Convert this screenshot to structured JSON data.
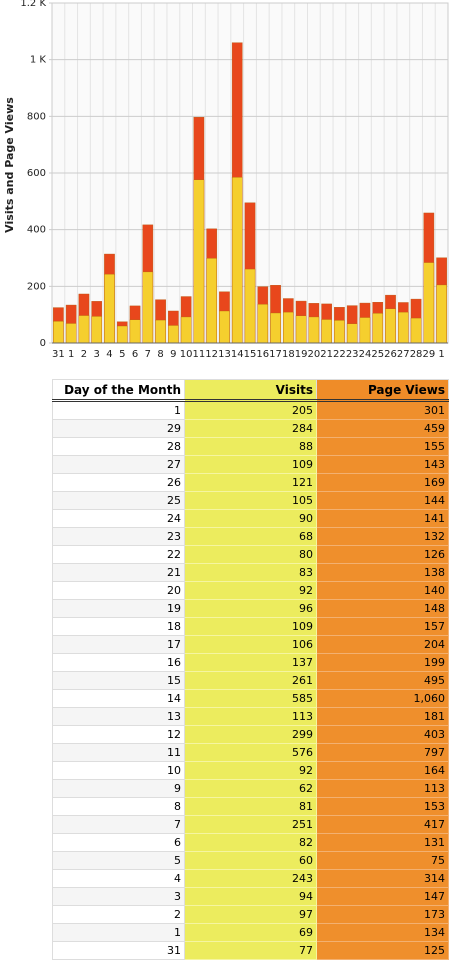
{
  "chart_data": {
    "type": "bar",
    "ylabel": "Visits and Page Views",
    "categories": [
      "31",
      "1",
      "2",
      "3",
      "4",
      "5",
      "6",
      "7",
      "8",
      "9",
      "10",
      "11",
      "12",
      "13",
      "14",
      "15",
      "16",
      "17",
      "18",
      "19",
      "20",
      "21",
      "22",
      "23",
      "24",
      "25",
      "26",
      "27",
      "28",
      "29",
      "1"
    ],
    "series": [
      {
        "name": "Page Views",
        "color": "#e8471c",
        "values": [
          125,
          134,
          173,
          147,
          314,
          75,
          131,
          417,
          153,
          113,
          164,
          797,
          403,
          181,
          1060,
          495,
          199,
          204,
          157,
          148,
          140,
          138,
          126,
          132,
          141,
          144,
          169,
          143,
          155,
          459,
          301
        ]
      },
      {
        "name": "Visits",
        "color": "#f5cf2e",
        "values": [
          77,
          69,
          97,
          94,
          243,
          60,
          82,
          251,
          81,
          62,
          92,
          576,
          299,
          113,
          585,
          261,
          137,
          106,
          109,
          96,
          92,
          83,
          80,
          68,
          90,
          105,
          121,
          109,
          88,
          284,
          205
        ]
      }
    ],
    "ylim": [
      0,
      1200
    ],
    "yticks": [
      0,
      200,
      400,
      600,
      800,
      {
        "value": 1000,
        "label": "1 K"
      },
      {
        "value": 1200,
        "label": "1.2 K"
      }
    ],
    "grid": true
  },
  "table": {
    "header": [
      "Day of the Month",
      "Visits",
      "Page Views"
    ],
    "rows": [
      [
        "1",
        "205",
        "301"
      ],
      [
        "29",
        "284",
        "459"
      ],
      [
        "28",
        "88",
        "155"
      ],
      [
        "27",
        "109",
        "143"
      ],
      [
        "26",
        "121",
        "169"
      ],
      [
        "25",
        "105",
        "144"
      ],
      [
        "24",
        "90",
        "141"
      ],
      [
        "23",
        "68",
        "132"
      ],
      [
        "22",
        "80",
        "126"
      ],
      [
        "21",
        "83",
        "138"
      ],
      [
        "20",
        "92",
        "140"
      ],
      [
        "19",
        "96",
        "148"
      ],
      [
        "18",
        "109",
        "157"
      ],
      [
        "17",
        "106",
        "204"
      ],
      [
        "16",
        "137",
        "199"
      ],
      [
        "15",
        "261",
        "495"
      ],
      [
        "14",
        "585",
        "1,060"
      ],
      [
        "13",
        "113",
        "181"
      ],
      [
        "12",
        "299",
        "403"
      ],
      [
        "11",
        "576",
        "797"
      ],
      [
        "10",
        "92",
        "164"
      ],
      [
        "9",
        "62",
        "113"
      ],
      [
        "8",
        "81",
        "153"
      ],
      [
        "7",
        "251",
        "417"
      ],
      [
        "6",
        "82",
        "131"
      ],
      [
        "5",
        "60",
        "75"
      ],
      [
        "4",
        "243",
        "314"
      ],
      [
        "3",
        "94",
        "147"
      ],
      [
        "2",
        "97",
        "173"
      ],
      [
        "1",
        "69",
        "134"
      ],
      [
        "31",
        "77",
        "125"
      ]
    ]
  }
}
